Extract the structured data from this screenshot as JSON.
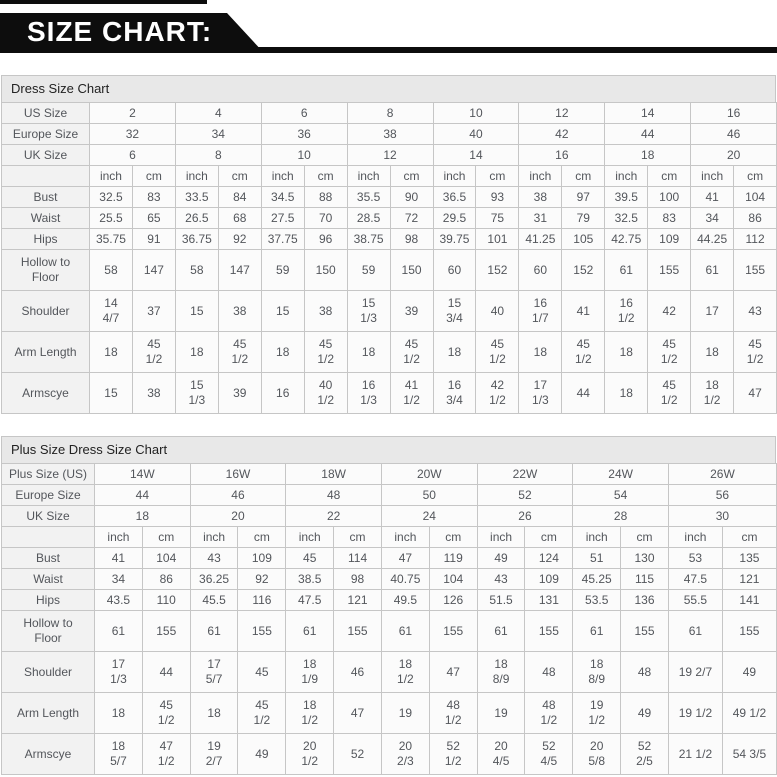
{
  "banner": {
    "title": "SIZE CHART:"
  },
  "colors": {
    "banner_bg": "#0d0d0d",
    "banner_text": "#ffffff",
    "section_bg": "#e8e8e8",
    "label_bg": "#f2f2f2",
    "cell_bg": "#fbfbfb",
    "border": "#c6c6c6",
    "cell_text": "#53565b",
    "title_text": "#222222"
  },
  "tables": [
    {
      "section_title": "Dress Size Chart",
      "unit_headers": [
        "inch",
        "cm"
      ],
      "size_rows": [
        {
          "label": "US Size",
          "values": [
            "2",
            "4",
            "6",
            "8",
            "10",
            "12",
            "14",
            "16"
          ]
        },
        {
          "label": "Europe Size",
          "values": [
            "32",
            "34",
            "36",
            "38",
            "40",
            "42",
            "44",
            "46"
          ]
        },
        {
          "label": "UK Size",
          "values": [
            "6",
            "8",
            "10",
            "12",
            "14",
            "16",
            "18",
            "20"
          ]
        }
      ],
      "measure_rows": [
        {
          "label": "Bust",
          "values": [
            "32.5",
            "83",
            "33.5",
            "84",
            "34.5",
            "88",
            "35.5",
            "90",
            "36.5",
            "93",
            "38",
            "97",
            "39.5",
            "100",
            "41",
            "104"
          ]
        },
        {
          "label": "Waist",
          "values": [
            "25.5",
            "65",
            "26.5",
            "68",
            "27.5",
            "70",
            "28.5",
            "72",
            "29.5",
            "75",
            "31",
            "79",
            "32.5",
            "83",
            "34",
            "86"
          ]
        },
        {
          "label": "Hips",
          "values": [
            "35.75",
            "91",
            "36.75",
            "92",
            "37.75",
            "96",
            "38.75",
            "98",
            "39.75",
            "101",
            "41.25",
            "105",
            "42.75",
            "109",
            "44.25",
            "112"
          ]
        },
        {
          "label": "Hollow to Floor",
          "values": [
            "58",
            "147",
            "58",
            "147",
            "59",
            "150",
            "59",
            "150",
            "60",
            "152",
            "60",
            "152",
            "61",
            "155",
            "61",
            "155"
          ]
        },
        {
          "label": "Shoulder",
          "values": [
            "14 4/7",
            "37",
            "15",
            "38",
            "15",
            "38",
            "15 1/3",
            "39",
            "15 3/4",
            "40",
            "16 1/7",
            "41",
            "16 1/2",
            "42",
            "17",
            "43"
          ]
        },
        {
          "label": "Arm Length",
          "values": [
            "18",
            "45 1/2",
            "18",
            "45 1/2",
            "18",
            "45 1/2",
            "18",
            "45 1/2",
            "18",
            "45 1/2",
            "18",
            "45 1/2",
            "18",
            "45 1/2",
            "18",
            "45 1/2"
          ]
        },
        {
          "label": "Armscye",
          "values": [
            "15",
            "38",
            "15 1/3",
            "39",
            "16",
            "40 1/2",
            "16 1/3",
            "41 1/2",
            "16 3/4",
            "42 1/2",
            "17 1/3",
            "44",
            "18",
            "45 1/2",
            "18 1/2",
            "47"
          ]
        }
      ]
    },
    {
      "section_title": "Plus Size Dress Size Chart",
      "unit_headers": [
        "inch",
        "cm"
      ],
      "size_rows": [
        {
          "label": "Plus Size (US)",
          "values": [
            "14W",
            "16W",
            "18W",
            "20W",
            "22W",
            "24W",
            "26W"
          ]
        },
        {
          "label": "Europe Size",
          "values": [
            "44",
            "46",
            "48",
            "50",
            "52",
            "54",
            "56"
          ]
        },
        {
          "label": "UK Size",
          "values": [
            "18",
            "20",
            "22",
            "24",
            "26",
            "28",
            "30"
          ]
        }
      ],
      "measure_rows": [
        {
          "label": "Bust",
          "values": [
            "41",
            "104",
            "43",
            "109",
            "45",
            "114",
            "47",
            "119",
            "49",
            "124",
            "51",
            "130",
            "53",
            "135"
          ]
        },
        {
          "label": "Waist",
          "values": [
            "34",
            "86",
            "36.25",
            "92",
            "38.5",
            "98",
            "40.75",
            "104",
            "43",
            "109",
            "45.25",
            "115",
            "47.5",
            "121"
          ]
        },
        {
          "label": "Hips",
          "values": [
            "43.5",
            "110",
            "45.5",
            "116",
            "47.5",
            "121",
            "49.5",
            "126",
            "51.5",
            "131",
            "53.5",
            "136",
            "55.5",
            "141"
          ]
        },
        {
          "label": "Hollow to Floor",
          "values": [
            "61",
            "155",
            "61",
            "155",
            "61",
            "155",
            "61",
            "155",
            "61",
            "155",
            "61",
            "155",
            "61",
            "155"
          ]
        },
        {
          "label": "Shoulder",
          "values": [
            "17 1/3",
            "44",
            "17 5/7",
            "45",
            "18 1/9",
            "46",
            "18 1/2",
            "47",
            "18 8/9",
            "48",
            "18 8/9",
            "48",
            "19 2/7",
            "49"
          ]
        },
        {
          "label": "Arm Length",
          "values": [
            "18",
            "45 1/2",
            "18",
            "45 1/2",
            "18 1/2",
            "47",
            "19",
            "48 1/2",
            "19",
            "48 1/2",
            "19 1/2",
            "49",
            "19 1/2",
            "49 1/2"
          ]
        },
        {
          "label": "Armscye",
          "values": [
            "18 5/7",
            "47 1/2",
            "19 2/7",
            "49",
            "20 1/2",
            "52",
            "20 2/3",
            "52 1/2",
            "20 4/5",
            "52 4/5",
            "20 5/8",
            "52 2/5",
            "21 1/2",
            "54 3/5"
          ]
        }
      ]
    }
  ]
}
